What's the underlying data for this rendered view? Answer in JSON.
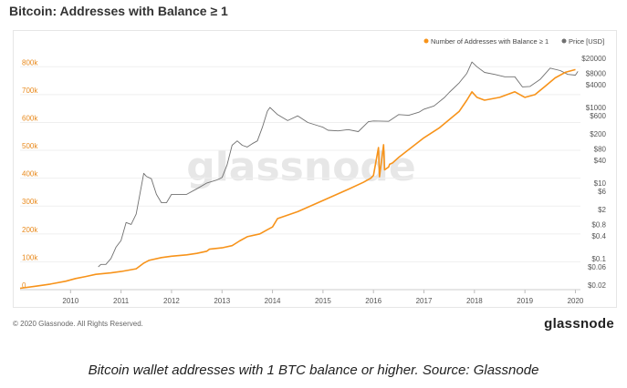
{
  "title": "Bitcoin: Addresses with Balance ≥ 1",
  "copyright": "© 2020 Glassnode. All Rights Reserved.",
  "brand": "glassnode",
  "watermark": "glassnode",
  "caption": "Bitcoin wallet addresses with 1 BTC balance or higher. Source: Glassnode",
  "colors": {
    "addresses": "#f7931a",
    "price": "#707070",
    "left_axis": "#e8891b",
    "axis_text": "#555555"
  },
  "chart_data": {
    "type": "line",
    "title": "Bitcoin: Addresses with Balance ≥ 1",
    "legend_position": "top-right",
    "x_ticks": [
      "2010",
      "2011",
      "2012",
      "2013",
      "2014",
      "2015",
      "2016",
      "2017",
      "2018",
      "2019",
      "2020"
    ],
    "x_range": [
      2009.0,
      2020.1
    ],
    "y_left": {
      "ticks": [
        "0",
        "100k",
        "200k",
        "300k",
        "400k",
        "500k",
        "600k",
        "700k",
        "800k"
      ],
      "range": [
        0,
        850000
      ]
    },
    "y_right": {
      "scale": "log",
      "ticks": [
        {
          "label": "$0.02",
          "value": 0.02
        },
        {
          "label": "$0.06",
          "value": 0.06
        },
        {
          "label": "$0.1",
          "value": 0.1
        },
        {
          "label": "$0.4",
          "value": 0.4
        },
        {
          "label": "$0.8",
          "value": 0.8
        },
        {
          "label": "$2",
          "value": 2
        },
        {
          "label": "$6",
          "value": 6
        },
        {
          "label": "$10",
          "value": 10
        },
        {
          "label": "$40",
          "value": 40
        },
        {
          "label": "$80",
          "value": 80
        },
        {
          "label": "$200",
          "value": 200
        },
        {
          "label": "$600",
          "value": 600
        },
        {
          "label": "$1000",
          "value": 1000
        },
        {
          "label": "$4000",
          "value": 4000
        },
        {
          "label": "$8000",
          "value": 8000
        },
        {
          "label": "$20000",
          "value": 20000
        }
      ],
      "range": [
        0.015,
        28000
      ]
    },
    "series": [
      {
        "name": "Number of Addresses with Balance ≥ 1",
        "axis": "left",
        "color": "#f7931a",
        "x": [
          2009.0,
          2009.3,
          2009.6,
          2009.9,
          2010.1,
          2010.3,
          2010.5,
          2010.8,
          2011.0,
          2011.3,
          2011.45,
          2011.55,
          2011.8,
          2012.0,
          2012.3,
          2012.5,
          2012.7,
          2012.75,
          2013.0,
          2013.2,
          2013.35,
          2013.5,
          2013.75,
          2013.9,
          2014.0,
          2014.1,
          2014.5,
          2015.0,
          2015.5,
          2015.8,
          2015.95,
          2016.0,
          2016.1,
          2016.12,
          2016.2,
          2016.22,
          2016.3,
          2016.32,
          2016.38,
          2016.5,
          2017.0,
          2017.3,
          2017.5,
          2017.7,
          2017.85,
          2017.95,
          2018.05,
          2018.2,
          2018.5,
          2018.8,
          2018.95,
          2019.0,
          2019.2,
          2019.4,
          2019.6,
          2019.8,
          2020.0
        ],
        "values": [
          5000,
          12000,
          20000,
          30000,
          40000,
          47000,
          55000,
          60000,
          65000,
          75000,
          95000,
          105000,
          115000,
          120000,
          125000,
          130000,
          138000,
          145000,
          150000,
          158000,
          175000,
          190000,
          200000,
          215000,
          225000,
          255000,
          280000,
          320000,
          360000,
          385000,
          400000,
          410000,
          510000,
          405000,
          520000,
          430000,
          440000,
          450000,
          455000,
          475000,
          545000,
          580000,
          610000,
          640000,
          680000,
          710000,
          690000,
          680000,
          690000,
          710000,
          695000,
          690000,
          700000,
          730000,
          760000,
          780000,
          790000
        ]
      },
      {
        "name": "Price [USD]",
        "axis": "right",
        "color": "#707070",
        "x": [
          2010.55,
          2010.6,
          2010.7,
          2010.8,
          2010.9,
          2011.0,
          2011.1,
          2011.2,
          2011.3,
          2011.4,
          2011.45,
          2011.5,
          2011.6,
          2011.7,
          2011.8,
          2011.9,
          2012.0,
          2012.3,
          2012.5,
          2012.7,
          2012.9,
          2013.0,
          2013.1,
          2013.2,
          2013.3,
          2013.4,
          2013.5,
          2013.6,
          2013.7,
          2013.8,
          2013.9,
          2013.95,
          2014.1,
          2014.3,
          2014.5,
          2014.7,
          2014.9,
          2015.0,
          2015.1,
          2015.3,
          2015.5,
          2015.7,
          2015.9,
          2016.0,
          2016.3,
          2016.5,
          2016.7,
          2016.9,
          2017.0,
          2017.2,
          2017.4,
          2017.5,
          2017.7,
          2017.85,
          2017.95,
          2018.05,
          2018.2,
          2018.4,
          2018.6,
          2018.8,
          2018.95,
          2019.1,
          2019.3,
          2019.5,
          2019.7,
          2019.85,
          2020.0,
          2020.05
        ],
        "values": [
          0.06,
          0.07,
          0.07,
          0.1,
          0.2,
          0.3,
          0.9,
          0.8,
          1.5,
          8,
          18,
          15,
          13,
          5,
          3,
          3,
          5,
          5,
          7,
          10,
          12,
          14,
          30,
          100,
          130,
          100,
          90,
          110,
          130,
          300,
          800,
          1000,
          650,
          450,
          600,
          400,
          330,
          300,
          250,
          240,
          260,
          230,
          420,
          440,
          430,
          650,
          620,
          750,
          900,
          1100,
          1800,
          2500,
          4500,
          8000,
          16000,
          12000,
          8500,
          7500,
          6500,
          6500,
          3500,
          3600,
          5500,
          11000,
          9500,
          7500,
          7200,
          9000
        ]
      }
    ]
  }
}
